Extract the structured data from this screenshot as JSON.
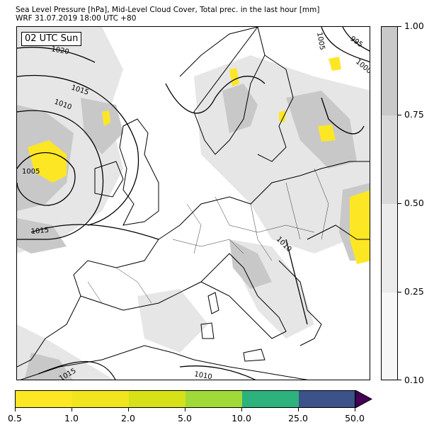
{
  "header": {
    "title_line1": "Sea Level Pressure [hPa], Mid-Level Cloud Cover, Total prec. in the last hour [mm]",
    "title_line2": "WRF 31.07.2019 18:00 UTC +80"
  },
  "map": {
    "time_label": "02 UTC Sun",
    "isobar_labels": [
      "1020",
      "1015",
      "1010",
      "1005",
      "1015",
      "1005",
      "995",
      "1000",
      "1010",
      "1015",
      "1010"
    ],
    "colors": {
      "land_line": "#000000",
      "cloud": "#c8c8c8",
      "cloud_light": "#e6e6e6",
      "precip": "#fde725"
    }
  },
  "cloud_colorbar": {
    "tick_labels": [
      "1.00",
      "0.75",
      "0.50",
      "0.25",
      "0.10"
    ],
    "levels": [
      0.1,
      0.25,
      0.5,
      0.75,
      1.0
    ],
    "colors": [
      "#f7f7f7",
      "#ebebeb",
      "#d9d9d9",
      "#c9c9c9"
    ]
  },
  "precip_colorbar": {
    "tick_labels": [
      "0.5",
      "1.0",
      "2.0",
      "5.0",
      "10.0",
      "25.0",
      "50.0"
    ],
    "levels": [
      0.5,
      1.0,
      2.0,
      5.0,
      10.0,
      25.0,
      50.0
    ],
    "colors": [
      "#fde725",
      "#f0e51f",
      "#d6e11a",
      "#a0da39",
      "#2db27d",
      "#3b528b",
      "#440154"
    ]
  }
}
